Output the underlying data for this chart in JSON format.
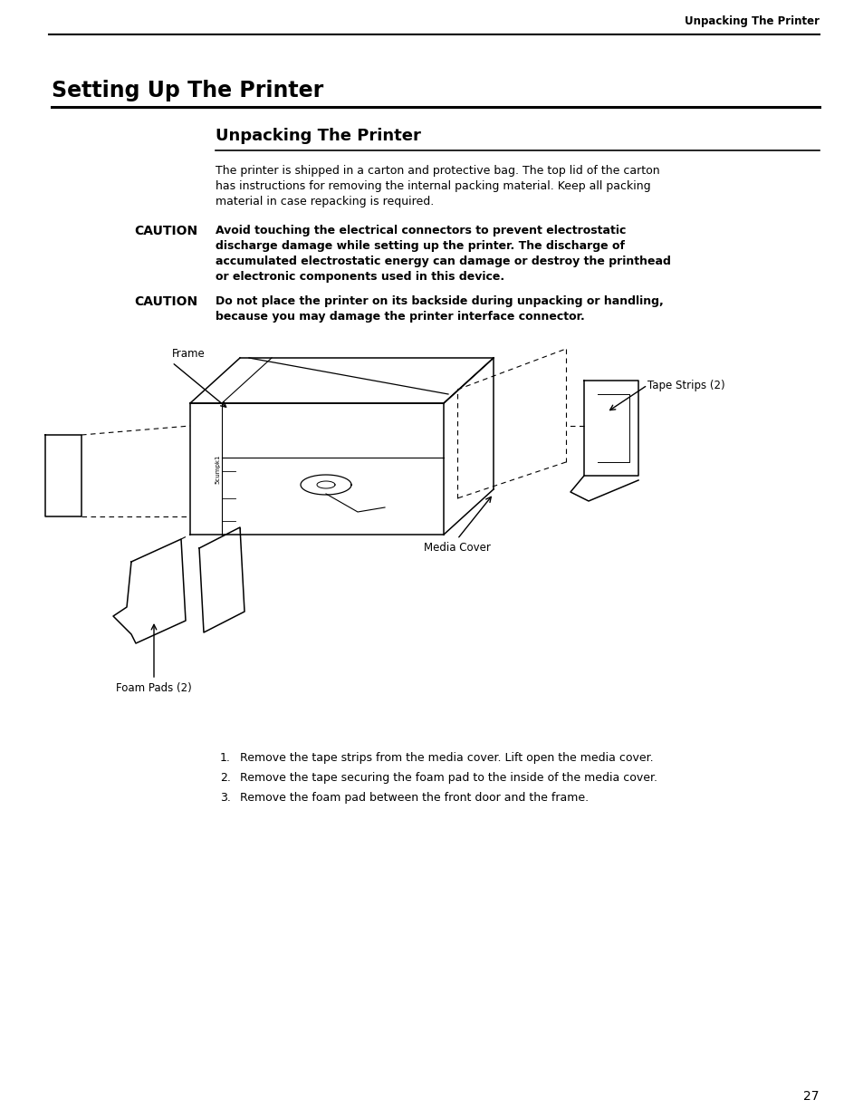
{
  "page_num": "27",
  "header_right": "Unpacking The Printer",
  "chapter_title": "Setting Up The Printer",
  "section_title": "Unpacking The Printer",
  "intro_text": "The printer is shipped in a carton and protective bag. The top lid of the carton\nhas instructions for removing the internal packing material. Keep all packing\nmaterial in case repacking is required.",
  "caution1_label": "CAUTION",
  "caution1_text": "Avoid touching the electrical connectors to prevent electrostatic\ndischarge damage while setting up the printer. The discharge of\naccumulated electrostatic energy can damage or destroy the printhead\nor electronic components used in this device.",
  "caution2_label": "CAUTION",
  "caution2_text": "Do not place the printer on its backside during unpacking or handling,\nbecause you may damage the printer interface connector.",
  "list_items": [
    "Remove the tape strips from the media cover. Lift open the media cover.",
    "Remove the tape securing the foam pad to the inside of the media cover.",
    "Remove the foam pad between the front door and the frame."
  ],
  "fig_labels": {
    "frame": "Frame",
    "media_cover": "Media Cover",
    "tape_strips": "Tape Strips (2)",
    "foam_pads": "Foam Pads (2)"
  },
  "bg_color": "#ffffff",
  "text_color": "#000000"
}
